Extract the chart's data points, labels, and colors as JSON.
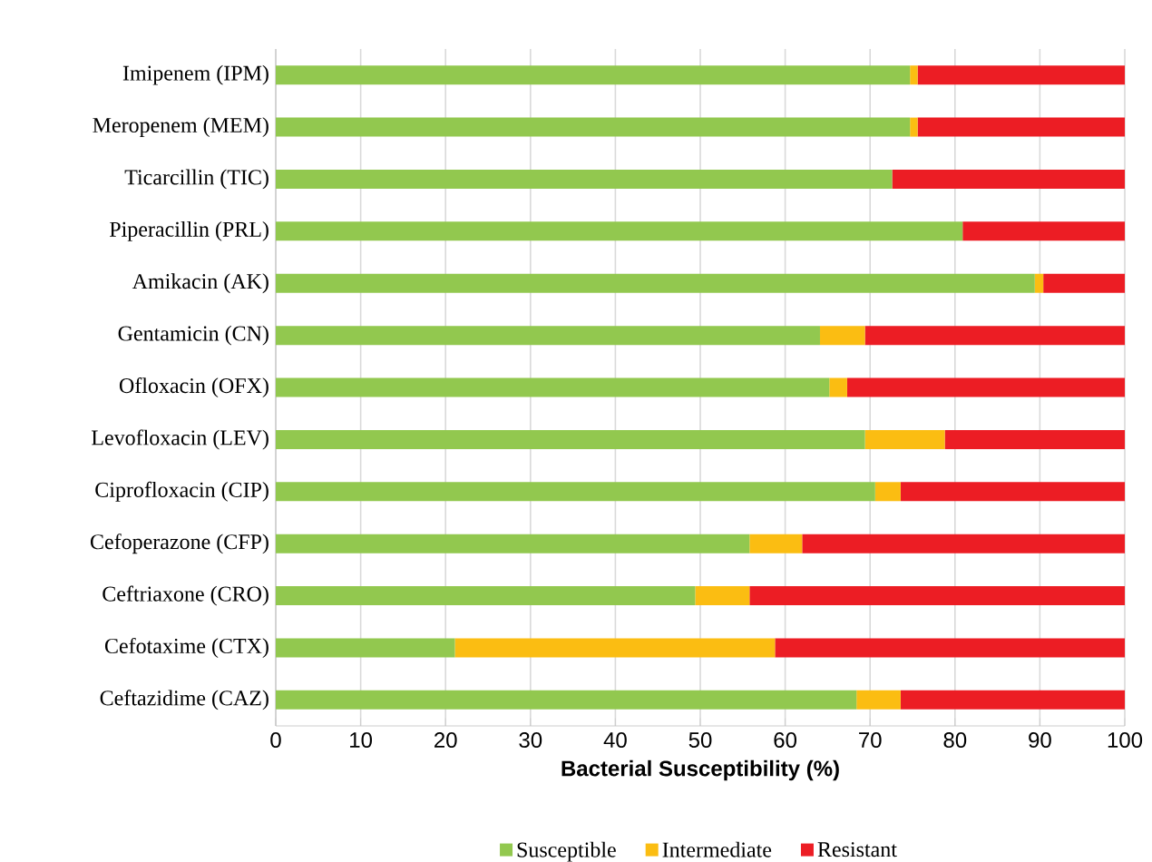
{
  "chart_data": {
    "type": "bar",
    "orientation": "horizontal",
    "stacked": true,
    "categories": [
      "Imipenem (IPM)",
      "Meropenem (MEM)",
      "Ticarcillin (TIC)",
      "Piperacillin (PRL)",
      "Amikacin (AK)",
      "Gentamicin (CN)",
      "Ofloxacin (OFX)",
      "Levofloxacin (LEV)",
      "Ciprofloxacin (CIP)",
      "Cefoperazone (CFP)",
      "Ceftriaxone (CRO)",
      "Cefotaxime (CTX)",
      "Ceftazidime (CAZ)"
    ],
    "series": [
      {
        "name": "Susceptible",
        "color": "#92c84f",
        "values": [
          74.7,
          74.7,
          72.6,
          80.9,
          89.4,
          64.1,
          65.2,
          69.4,
          70.6,
          55.8,
          49.4,
          21.1,
          68.4
        ]
      },
      {
        "name": "Intermediate",
        "color": "#fbbd12",
        "values": [
          0.9,
          0.9,
          0,
          0,
          1.0,
          5.3,
          2.1,
          9.4,
          3.0,
          6.2,
          6.4,
          37.7,
          5.2
        ]
      },
      {
        "name": "Resistant",
        "color": "#ec1d24",
        "values": [
          24.4,
          24.4,
          27.4,
          19.1,
          9.6,
          30.6,
          32.7,
          21.2,
          26.4,
          38.0,
          44.2,
          41.2,
          26.4
        ]
      }
    ],
    "xlabel": "Bacterial Susceptibility (%)",
    "xlim": [
      0,
      100
    ],
    "xticks": [
      0,
      10,
      20,
      30,
      40,
      50,
      60,
      70,
      80,
      90,
      100
    ],
    "grid": "x",
    "legend": "bottom"
  }
}
